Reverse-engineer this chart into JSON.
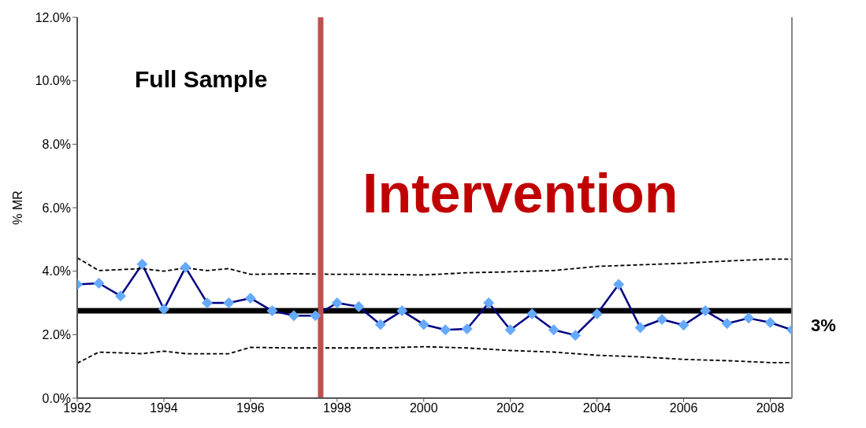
{
  "chart_data": {
    "type": "line",
    "ylabel": "% MR",
    "annotations": [
      "Full Sample",
      "Intervention"
    ],
    "xlim": [
      1992,
      2008.5
    ],
    "xticks": [
      1992,
      1994,
      1996,
      1998,
      2000,
      2002,
      2004,
      2006,
      2008
    ],
    "ylim": [
      0,
      12
    ],
    "yticks": [
      {
        "value": 0,
        "label": "0.0%"
      },
      {
        "value": 2,
        "label": "2.0%"
      },
      {
        "value": 4,
        "label": "4.0%"
      },
      {
        "value": 6,
        "label": "6.0%"
      },
      {
        "value": 8,
        "label": "8.0%"
      },
      {
        "value": 10,
        "label": "10.0%"
      },
      {
        "value": 12,
        "label": "12.0%"
      }
    ],
    "grid": false,
    "series": [
      {
        "color": "#000080",
        "marker": "diamond",
        "line_style": "solid",
        "x": [
          1992,
          1992.5,
          1993,
          1993.5,
          1994,
          1994.5,
          1995,
          1995.5,
          1996,
          1996.5,
          1997,
          1997.5,
          1998,
          1998.5,
          1999,
          1999.5,
          2000,
          2000.5,
          2001,
          2001.5,
          2002,
          2002.5,
          2003,
          2003.5,
          2004,
          2004.5,
          2005,
          2005.5,
          2006,
          2006.5,
          2007,
          2007.5,
          2008,
          2008.5
        ],
        "values": [
          3.58,
          3.62,
          3.22,
          4.22,
          2.8,
          4.12,
          3.0,
          3.0,
          3.15,
          2.75,
          2.6,
          2.6,
          3.0,
          2.88,
          2.32,
          2.75,
          2.32,
          2.15,
          2.18,
          3.0,
          2.15,
          2.65,
          2.15,
          1.98,
          2.65,
          3.58,
          2.22,
          2.48,
          2.3,
          2.75,
          2.35,
          2.52,
          2.38,
          2.15
        ],
        "colors": [
          "#66aaff",
          "#66aaff",
          "#66aaff",
          "#66aaff",
          "#66aaff",
          "#66aaff",
          "#66aaff",
          "#66aaff",
          "#66aaff",
          "#66aaff",
          "#66aaff",
          "#66aaff",
          "#66aaff",
          "#66aaff",
          "#66aaff",
          "#66aaff",
          "#66aaff",
          "#66aaff",
          "#66aaff",
          "#66aaff",
          "#66aaff",
          "#66aaff",
          "#66aaff",
          "#66aaff",
          "#66aaff",
          "#66aaff",
          "#66aaff",
          "#66aaff",
          "#66aaff",
          "#66aaff",
          "#66aaff",
          "#66aaff",
          "#66aaff",
          "#66aaff"
        ]
      },
      {
        "color": "#000000",
        "marker": "none",
        "line_style": "dashed",
        "x": [
          1992,
          1992.5,
          1993.5,
          1994,
          1994.5,
          1995,
          1995.5,
          1996,
          1997,
          1998,
          1999,
          2000,
          2001,
          2002,
          2003,
          2004,
          2005,
          2006,
          2007,
          2008,
          2008.5
        ],
        "values": [
          4.42,
          4.02,
          4.08,
          4.0,
          4.1,
          4.02,
          4.08,
          3.9,
          3.92,
          3.9,
          3.9,
          3.88,
          3.95,
          3.98,
          4.02,
          4.15,
          4.2,
          4.25,
          4.32,
          4.38,
          4.38
        ]
      },
      {
        "color": "#000000",
        "marker": "none",
        "line_style": "dashed",
        "x": [
          1992,
          1992.5,
          1993.5,
          1994,
          1994.5,
          1995.5,
          1996,
          1997,
          1998,
          1999,
          2000,
          2001,
          2002,
          2003,
          2004,
          2005,
          2006,
          2007,
          2008,
          2008.5
        ],
        "values": [
          1.1,
          1.45,
          1.4,
          1.48,
          1.4,
          1.4,
          1.6,
          1.58,
          1.58,
          1.58,
          1.62,
          1.58,
          1.5,
          1.45,
          1.35,
          1.3,
          1.22,
          1.18,
          1.12,
          1.12
        ]
      }
    ],
    "ref_lines": [
      {
        "axis": "y",
        "value": 2.75,
        "label": "3%",
        "color": "#000000"
      },
      {
        "axis": "x",
        "value": 1997.62,
        "color": "#c0504d"
      }
    ]
  }
}
